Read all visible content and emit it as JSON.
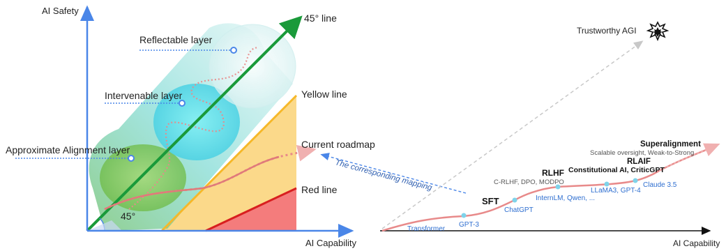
{
  "left_diagram": {
    "y_axis_label": "AI Safety",
    "x_axis_label": "AI Capability",
    "line_45_label": "45° line",
    "angle_label": "45°",
    "yellow_line_label": "Yellow line",
    "red_line_label": "Red line",
    "current_roadmap_label": "Current roadmap",
    "layers": [
      {
        "label": "Reflectable layer"
      },
      {
        "label": "Intervenable layer"
      },
      {
        "label": "Approximate Alignment layer"
      }
    ],
    "colors": {
      "axis": "#4a86e8",
      "line_45": "#1a9a3a",
      "yellow_region": "#fbd98a",
      "yellow_line": "#f6b829",
      "red_region": "#f47c7c",
      "red_line": "#d81f1f",
      "roadmap": "#e88080"
    }
  },
  "mapping_label": "The corresponding mapping",
  "right_diagram": {
    "x_axis_label": "AI Capability",
    "goal_label": "Trustworthy AGI",
    "stages": [
      {
        "title": "SFT",
        "subtitle": ""
      },
      {
        "title": "RLHF",
        "subtitle": "C-RLHF, DPO, MODPO"
      },
      {
        "title": "Constitutional AI, CriticGPT",
        "subtitle": ""
      },
      {
        "title": "RLAIF",
        "subtitle": ""
      },
      {
        "title": "Superalignment",
        "subtitle": "Scalable oversight, Weak-to-Strong"
      }
    ],
    "milestones": [
      {
        "label": "Transformer"
      },
      {
        "label": "GPT-3"
      },
      {
        "label": "ChatGPT"
      },
      {
        "label": "InternLM, Qwen, ..."
      },
      {
        "label": "LLaMA3, GPT-4"
      },
      {
        "label": "Claude 3.5"
      }
    ],
    "colors": {
      "milestone_text": "#2f6fd0",
      "milestone_dot": "#7fd3ea",
      "curve": "#e88a8a",
      "dashed_gray": "#c8c8c8"
    }
  }
}
